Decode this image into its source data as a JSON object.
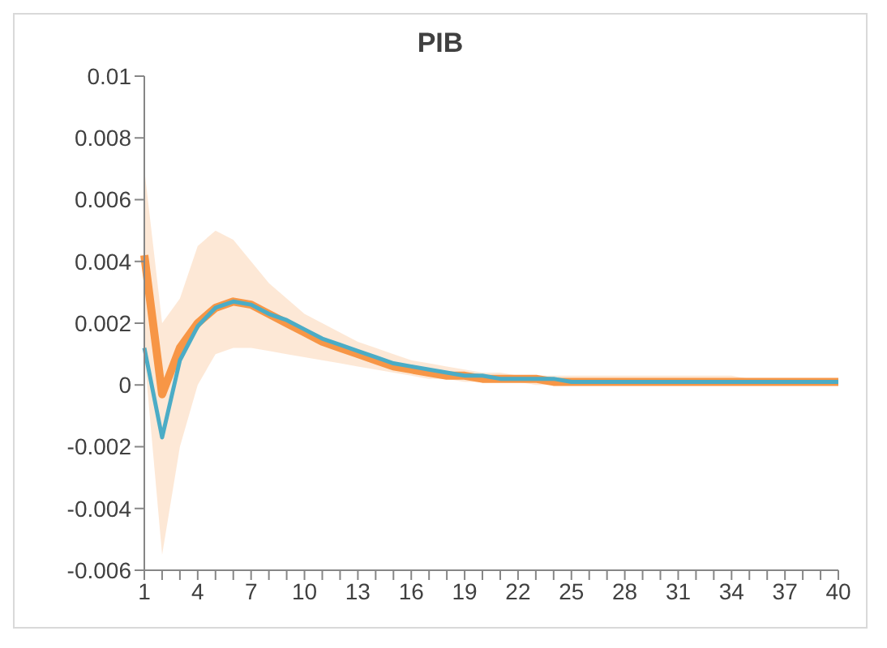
{
  "chart_data": {
    "type": "line",
    "title": "PIB",
    "categories": [
      "1",
      null,
      null,
      "4",
      null,
      null,
      "7",
      null,
      null,
      "10",
      null,
      null,
      "13",
      null,
      null,
      "16",
      null,
      null,
      "19",
      null,
      null,
      "22",
      null,
      null,
      "25",
      null,
      null,
      "28",
      null,
      null,
      "31",
      null,
      null,
      "34",
      null,
      null,
      "37",
      null,
      null,
      "40"
    ],
    "series": [
      {
        "color": "#4bacc6",
        "values": [
          0.0012,
          -0.0017,
          0.0008,
          0.0019,
          0.0025,
          0.0027,
          0.0026,
          0.0023,
          0.0021,
          0.0018,
          0.0015,
          0.0013,
          0.0011,
          0.0009,
          0.0007,
          0.0006,
          0.0005,
          0.0004,
          0.0003,
          0.0003,
          0.0002,
          0.0002,
          0.0002,
          0.0002,
          0.0001,
          0.0001,
          0.0001,
          0.0001,
          0.0001,
          0.0001,
          0.0001,
          0.0001,
          0.0001,
          0.0001,
          0.0001,
          0.0001,
          0.0001,
          0.0001,
          0.0001,
          0.0001
        ]
      },
      {
        "color": "#f79646",
        "values": [
          0.0042,
          -0.0003,
          0.0012,
          0.002,
          0.0025,
          0.0027,
          0.0026,
          0.0023,
          0.002,
          0.0017,
          0.0014,
          0.0012,
          0.001,
          0.0008,
          0.0006,
          0.0005,
          0.0004,
          0.0003,
          0.0003,
          0.0002,
          0.0002,
          0.0002,
          0.0002,
          0.0001,
          0.0001,
          0.0001,
          0.0001,
          0.0001,
          0.0001,
          0.0001,
          0.0001,
          0.0001,
          0.0001,
          0.0001,
          0.0001,
          0.0001,
          0.0001,
          0.0001,
          0.0001,
          0.0001
        ],
        "lower": [
          0.001,
          -0.0055,
          -0.002,
          0,
          0.001,
          0.0012,
          0.0012,
          0.0011,
          0.001,
          0.0009,
          0.0008,
          0.0007,
          0.0006,
          0.0005,
          0.0004,
          0.0003,
          0.0002,
          0.0002,
          0.0001,
          0.0001,
          0.0001,
          0.0001,
          0,
          0,
          0,
          0,
          0,
          0,
          0,
          0,
          0,
          0,
          0,
          0,
          0,
          0,
          0,
          0,
          0,
          0
        ],
        "upper": [
          0.007,
          0.002,
          0.0028,
          0.0045,
          0.005,
          0.0047,
          0.004,
          0.0033,
          0.0028,
          0.0023,
          0.002,
          0.0017,
          0.0014,
          0.0012,
          0.001,
          0.0008,
          0.0007,
          0.0006,
          0.0005,
          0.0004,
          0.0004,
          0.0003,
          0.0003,
          0.0003,
          0.0003,
          0.0003,
          0.0003,
          0.0003,
          0.0003,
          0.0003,
          0.0003,
          0.0003,
          0.0003,
          0.0003,
          0.0002,
          0.0002,
          0.0002,
          0.0002,
          0.0002,
          0.0002
        ]
      }
    ],
    "ylim": [
      -0.006,
      0.01
    ],
    "yticks": [
      -0.006,
      -0.004,
      -0.002,
      0,
      0.002,
      0.004,
      0.006,
      0.008,
      0.01
    ],
    "grid": false,
    "legend": false,
    "marker": "none",
    "line_style": "solid"
  }
}
